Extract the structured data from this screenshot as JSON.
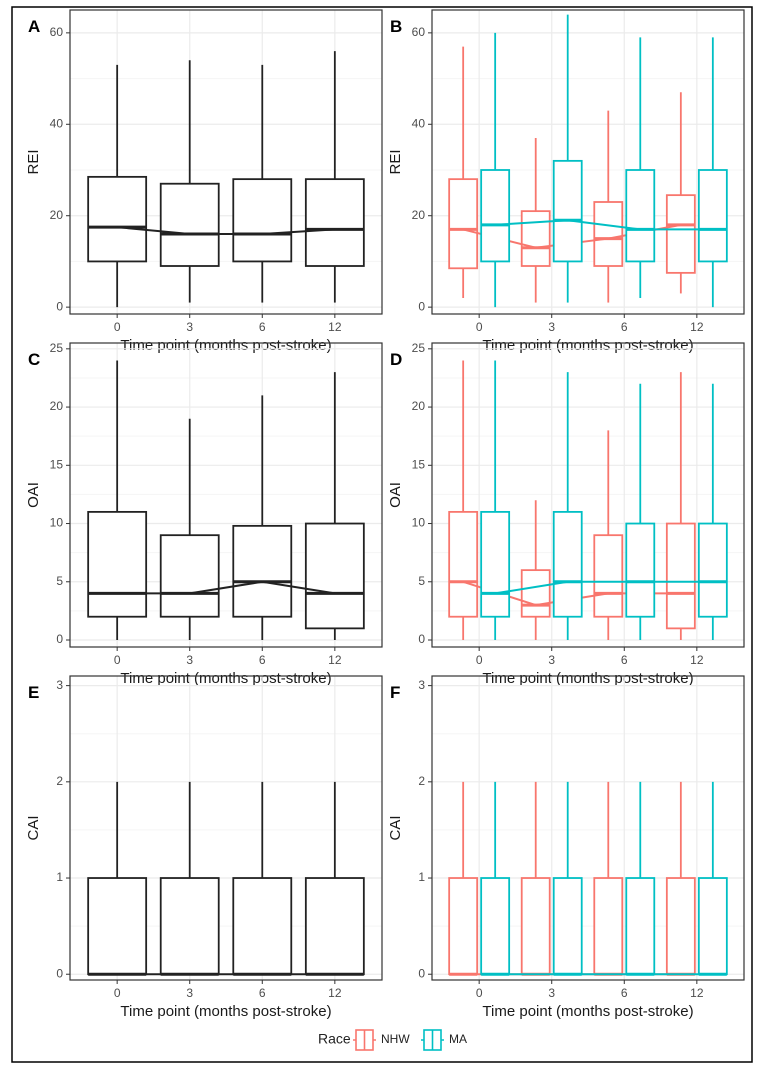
{
  "colors": {
    "overall": "#222222",
    "NHW": "#F8766D",
    "MA": "#00BFC4",
    "grid_major": "#ebebeb",
    "grid_minor": "#f5f5f5",
    "panel_border": "#333333",
    "figure_border": "#000000"
  },
  "legend": {
    "title": "Race",
    "position": "bottom",
    "entries": [
      {
        "label": "NHW",
        "color_key": "NHW"
      },
      {
        "label": "MA",
        "color_key": "MA"
      }
    ]
  },
  "chart_data": [
    {
      "panel": "A",
      "type": "boxplot",
      "grouped": false,
      "xlabel": "Time point (months post-stroke)",
      "ylabel": "REI",
      "categories": [
        "0",
        "3",
        "6",
        "12"
      ],
      "ylim": [
        -1.5,
        65
      ],
      "yticks": [
        0,
        20,
        40,
        60
      ],
      "grid": true,
      "series": [
        {
          "boxes": [
            {
              "min": 0,
              "q1": 10,
              "median": 17.5,
              "q3": 28.5,
              "max": 53
            },
            {
              "min": 1,
              "q1": 9,
              "median": 16,
              "q3": 27,
              "max": 54
            },
            {
              "min": 1,
              "q1": 10,
              "median": 16,
              "q3": 28,
              "max": 53
            },
            {
              "min": 1,
              "q1": 9,
              "median": 17,
              "q3": 28,
              "max": 56
            }
          ]
        }
      ]
    },
    {
      "panel": "B",
      "type": "boxplot",
      "grouped": true,
      "xlabel": "Time point (months post-stroke)",
      "ylabel": "REI",
      "categories": [
        "0",
        "3",
        "6",
        "12"
      ],
      "ylim": [
        -1.5,
        65
      ],
      "yticks": [
        0,
        20,
        40,
        60
      ],
      "grid": true,
      "series": [
        {
          "name": "NHW",
          "color_key": "NHW",
          "boxes": [
            {
              "min": 2,
              "q1": 8.5,
              "median": 17,
              "q3": 28,
              "max": 57
            },
            {
              "min": 1,
              "q1": 9,
              "median": 13,
              "q3": 21,
              "max": 37
            },
            {
              "min": 1,
              "q1": 9,
              "median": 15,
              "q3": 23,
              "max": 43
            },
            {
              "min": 3,
              "q1": 7.5,
              "median": 18,
              "q3": 24.5,
              "max": 47
            }
          ]
        },
        {
          "name": "MA",
          "color_key": "MA",
          "boxes": [
            {
              "min": 0,
              "q1": 10,
              "median": 18,
              "q3": 30,
              "max": 60
            },
            {
              "min": 1,
              "q1": 10,
              "median": 19,
              "q3": 32,
              "max": 64
            },
            {
              "min": 2,
              "q1": 10,
              "median": 17,
              "q3": 30,
              "max": 59
            },
            {
              "min": 0,
              "q1": 10,
              "median": 17,
              "q3": 30,
              "max": 59
            }
          ]
        }
      ]
    },
    {
      "panel": "C",
      "type": "boxplot",
      "grouped": false,
      "xlabel": "Time point (months post-stroke)",
      "ylabel": "OAI",
      "categories": [
        "0",
        "3",
        "6",
        "12"
      ],
      "ylim": [
        -0.6,
        25.5
      ],
      "yticks": [
        0,
        5,
        10,
        15,
        20,
        25
      ],
      "grid": true,
      "series": [
        {
          "boxes": [
            {
              "min": 0,
              "q1": 2,
              "median": 4,
              "q3": 11,
              "max": 24
            },
            {
              "min": 0,
              "q1": 2,
              "median": 4,
              "q3": 9,
              "max": 19
            },
            {
              "min": 0,
              "q1": 2,
              "median": 5,
              "q3": 9.8,
              "max": 21
            },
            {
              "min": 0,
              "q1": 1,
              "median": 4,
              "q3": 10,
              "max": 23
            }
          ]
        }
      ]
    },
    {
      "panel": "D",
      "type": "boxplot",
      "grouped": true,
      "xlabel": "Time point (months post-stroke)",
      "ylabel": "OAI",
      "categories": [
        "0",
        "3",
        "6",
        "12"
      ],
      "ylim": [
        -0.6,
        25.5
      ],
      "yticks": [
        0,
        5,
        10,
        15,
        20,
        25
      ],
      "grid": true,
      "series": [
        {
          "name": "NHW",
          "color_key": "NHW",
          "boxes": [
            {
              "min": 0,
              "q1": 2,
              "median": 5,
              "q3": 11,
              "max": 24
            },
            {
              "min": 0,
              "q1": 2,
              "median": 3,
              "q3": 6,
              "max": 12
            },
            {
              "min": 0,
              "q1": 2,
              "median": 4,
              "q3": 9,
              "max": 18
            },
            {
              "min": 0,
              "q1": 1,
              "median": 4,
              "q3": 10,
              "max": 23
            }
          ]
        },
        {
          "name": "MA",
          "color_key": "MA",
          "boxes": [
            {
              "min": 0,
              "q1": 2,
              "median": 4,
              "q3": 11,
              "max": 24
            },
            {
              "min": 0,
              "q1": 2,
              "median": 5,
              "q3": 11,
              "max": 23
            },
            {
              "min": 0,
              "q1": 2,
              "median": 5,
              "q3": 10,
              "max": 22
            },
            {
              "min": 0,
              "q1": 2,
              "median": 5,
              "q3": 10,
              "max": 22
            }
          ]
        }
      ]
    },
    {
      "panel": "E",
      "type": "boxplot",
      "grouped": false,
      "xlabel": "Time point (months post-stroke)",
      "ylabel": "CAI",
      "categories": [
        "0",
        "3",
        "6",
        "12"
      ],
      "ylim": [
        -0.06,
        3.1
      ],
      "yticks": [
        0,
        1,
        2,
        3
      ],
      "grid": true,
      "series": [
        {
          "boxes": [
            {
              "min": 0,
              "q1": 0,
              "median": 0,
              "q3": 1,
              "max": 2
            },
            {
              "min": 0,
              "q1": 0,
              "median": 0,
              "q3": 1,
              "max": 2
            },
            {
              "min": 0,
              "q1": 0,
              "median": 0,
              "q3": 1,
              "max": 2
            },
            {
              "min": 0,
              "q1": 0,
              "median": 0,
              "q3": 1,
              "max": 2
            }
          ]
        }
      ]
    },
    {
      "panel": "F",
      "type": "boxplot",
      "grouped": true,
      "xlabel": "Time point (months post-stroke)",
      "ylabel": "CAI",
      "categories": [
        "0",
        "3",
        "6",
        "12"
      ],
      "ylim": [
        -0.06,
        3.1
      ],
      "yticks": [
        0,
        1,
        2,
        3
      ],
      "grid": true,
      "series": [
        {
          "name": "NHW",
          "color_key": "NHW",
          "boxes": [
            {
              "min": 0,
              "q1": 0,
              "median": 0,
              "q3": 1,
              "max": 2
            },
            {
              "min": 0,
              "q1": 0,
              "median": 0,
              "q3": 1,
              "max": 2
            },
            {
              "min": 0,
              "q1": 0,
              "median": 0,
              "q3": 1,
              "max": 2
            },
            {
              "min": 0,
              "q1": 0,
              "median": 0,
              "q3": 1,
              "max": 2
            }
          ]
        },
        {
          "name": "MA",
          "color_key": "MA",
          "boxes": [
            {
              "min": 0,
              "q1": 0,
              "median": 0,
              "q3": 1,
              "max": 2
            },
            {
              "min": 0,
              "q1": 0,
              "median": 0,
              "q3": 1,
              "max": 2
            },
            {
              "min": 0,
              "q1": 0,
              "median": 0,
              "q3": 1,
              "max": 2
            },
            {
              "min": 0,
              "q1": 0,
              "median": 0,
              "q3": 1,
              "max": 2
            }
          ]
        }
      ]
    }
  ]
}
